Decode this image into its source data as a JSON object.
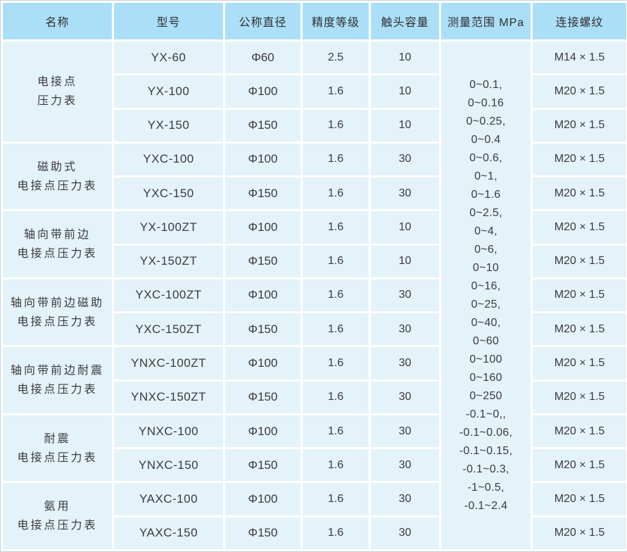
{
  "table": {
    "headers": [
      "名称",
      "型号",
      "公称直径",
      "精度等级",
      "触头容量",
      "测量范围 MPa",
      "连接螺纹"
    ],
    "groups": [
      {
        "name_lines": [
          "电接点",
          "压力表"
        ],
        "rows": [
          {
            "model": "YX-60",
            "diameter": "Φ60",
            "accuracy": "2.5",
            "capacity": "10",
            "thread": "M14 × 1.5"
          },
          {
            "model": "YX-100",
            "diameter": "Φ100",
            "accuracy": "1.6",
            "capacity": "10",
            "thread": "M20 × 1.5"
          },
          {
            "model": "YX-150",
            "diameter": "Φ150",
            "accuracy": "1.6",
            "capacity": "10",
            "thread": "M20 × 1.5"
          }
        ]
      },
      {
        "name_lines": [
          "磁助式",
          "电接点压力表"
        ],
        "rows": [
          {
            "model": "YXC-100",
            "diameter": "Φ100",
            "accuracy": "1.6",
            "capacity": "30",
            "thread": "M20 × 1.5"
          },
          {
            "model": "YXC-150",
            "diameter": "Φ150",
            "accuracy": "1.6",
            "capacity": "30",
            "thread": "M20 × 1.5"
          }
        ]
      },
      {
        "name_lines": [
          "轴向带前边",
          "电接点压力表"
        ],
        "rows": [
          {
            "model": "YX-100ZT",
            "diameter": "Φ100",
            "accuracy": "1.6",
            "capacity": "10",
            "thread": "M20 × 1.5"
          },
          {
            "model": "YX-150ZT",
            "diameter": "Φ150",
            "accuracy": "1.6",
            "capacity": "10",
            "thread": "M20 × 1.5"
          }
        ]
      },
      {
        "name_lines": [
          "轴向带前边磁助",
          "电接点压力表"
        ],
        "rows": [
          {
            "model": "YXC-100ZT",
            "diameter": "Φ100",
            "accuracy": "1.6",
            "capacity": "30",
            "thread": "M20 × 1.5"
          },
          {
            "model": "YXC-150ZT",
            "diameter": "Φ150",
            "accuracy": "1.6",
            "capacity": "30",
            "thread": "M20 × 1.5"
          }
        ]
      },
      {
        "name_lines": [
          "轴向带前边耐震",
          "电接点压力表"
        ],
        "rows": [
          {
            "model": "YNXC-100ZT",
            "diameter": "Φ100",
            "accuracy": "1.6",
            "capacity": "30",
            "thread": "M20 × 1.5"
          },
          {
            "model": "YNXC-150ZT",
            "diameter": "Φ150",
            "accuracy": "1.6",
            "capacity": "30",
            "thread": "M20 × 1.5"
          }
        ]
      },
      {
        "name_lines": [
          "耐震",
          "电接点压力表"
        ],
        "rows": [
          {
            "model": "YNXC-100",
            "diameter": "Φ100",
            "accuracy": "1.6",
            "capacity": "30",
            "thread": "M20 × 1.5"
          },
          {
            "model": "YNXC-150",
            "diameter": "Φ150",
            "accuracy": "1.6",
            "capacity": "30",
            "thread": "M20 × 1.5"
          }
        ]
      },
      {
        "name_lines": [
          "氨用",
          "电接点压力表"
        ],
        "rows": [
          {
            "model": "YAXC-100",
            "diameter": "Φ100",
            "accuracy": "1.6",
            "capacity": "30",
            "thread": "M20 × 1.5"
          },
          {
            "model": "YAXC-150",
            "diameter": "Φ150",
            "accuracy": "1.6",
            "capacity": "30",
            "thread": "M20 × 1.5"
          }
        ]
      }
    ],
    "measuring_range_lines": [
      "0~0.1,",
      "0~0.16",
      "0~0.25,",
      "0~0.4",
      "0~0.6,",
      "0~1,",
      "0~1.6",
      "0~2.5,",
      "0~4,",
      "0~6,",
      "0~10",
      "0~16,",
      "0~25,",
      "0~40,",
      "0~60",
      "0~100",
      "0~160",
      "0~250",
      "-0.1~0,,",
      "-0.1~0.06,",
      "-0.1~0.15,",
      "-0.1~0.3,",
      "-1~0.5,",
      "-0.1~2.4"
    ],
    "colors": {
      "header_bg": "#abdff7",
      "body_bg": "#e4f2fa",
      "grid": "#ffffff",
      "frame": "#c6d0d5",
      "text": "#3b3b3b"
    }
  }
}
